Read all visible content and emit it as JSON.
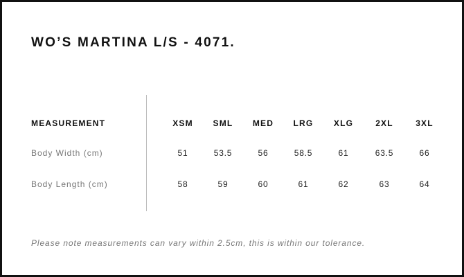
{
  "title": "WO’S MARTINA L/S - 4071.",
  "table": {
    "header_label": "MEASUREMENT",
    "sizes": [
      "XSM",
      "SML",
      "MED",
      "LRG",
      "XLG",
      "2XL",
      "3XL"
    ],
    "rows": [
      {
        "label": "Body Width (cm)",
        "values": [
          "51",
          "53.5",
          "56",
          "58.5",
          "61",
          "63.5",
          "66"
        ]
      },
      {
        "label": "Body Length (cm)",
        "values": [
          "58",
          "59",
          "60",
          "61",
          "62",
          "63",
          "64"
        ]
      }
    ]
  },
  "note": "Please note measurements can vary within 2.5cm, this is within our tolerance."
}
